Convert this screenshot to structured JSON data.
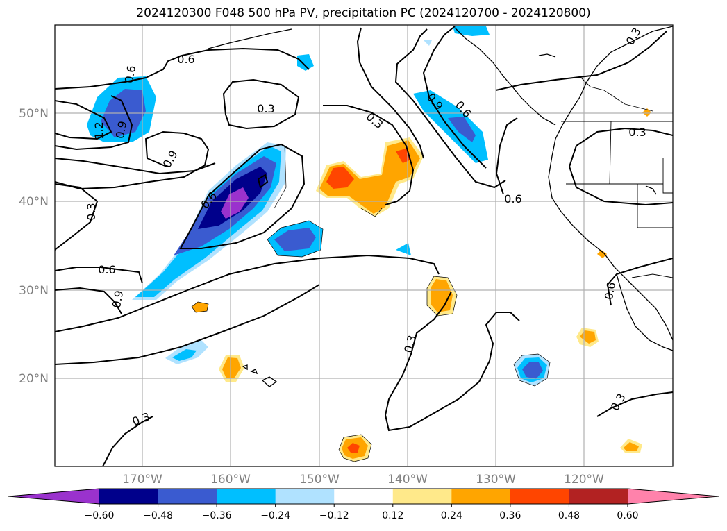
{
  "title": "2024120300 F048 500 hPa PV, precipitation PC (2024120700 - 2024120800)",
  "map": {
    "projection": "PlateCarree",
    "lon_range": [
      -180,
      -110
    ],
    "lat_range": [
      10,
      60
    ],
    "gridlines": true,
    "lon_ticks": [
      "170°W",
      "160°W",
      "150°W",
      "140°W",
      "130°W",
      "120°W"
    ],
    "lat_ticks": [
      "20°N",
      "30°N",
      "40°N",
      "50°N"
    ]
  },
  "contours": {
    "variable": "500 hPa PV",
    "color": "#000000",
    "labels": [
      "0.6",
      "0.3",
      "0.9",
      "0.6",
      "0.9",
      "1.2",
      "0.6",
      "0.3",
      "0.6",
      "0.9",
      "0.9",
      "0.6",
      "0.3",
      "0.3",
      "0.3",
      "0.6",
      "0.3",
      "0.6",
      "0.3",
      "0.3"
    ]
  },
  "colorbar": {
    "variable": "precipitation PC",
    "extend": "both",
    "tick_labels": [
      "−0.60",
      "−0.48",
      "−0.36",
      "−0.24",
      "−0.12",
      "0.12",
      "0.24",
      "0.36",
      "0.48",
      "0.60"
    ],
    "colors": [
      "#9a32cd",
      "#00008b",
      "#3a5bd0",
      "#00bfff",
      "#b0e2ff",
      "#ffffff",
      "#ffe98a",
      "#ffa500",
      "#ff4500",
      "#b22222",
      "#ff82ab"
    ]
  }
}
